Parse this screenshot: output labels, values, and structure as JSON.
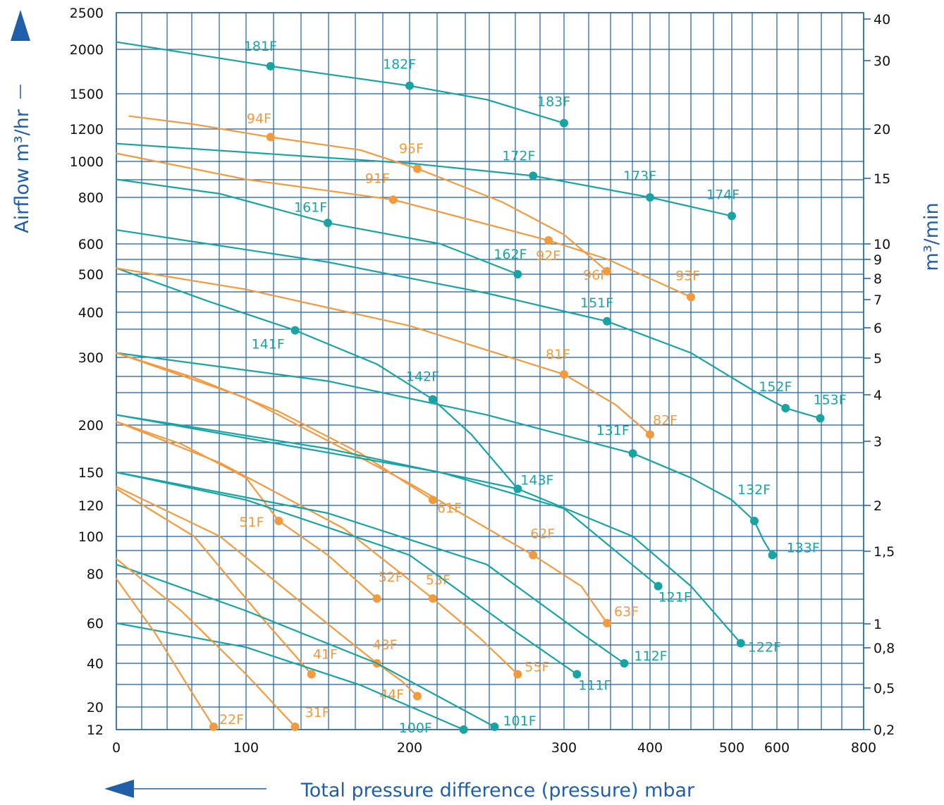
{
  "chart_data": {
    "type": "line",
    "title": "",
    "xlabel": "Total pressure difference (pressure) mbar",
    "ylabel_left": "Airflow m³/hr",
    "ylabel_right": "m³/min",
    "grid": true,
    "colors": {
      "teal": "#1aa3a3",
      "orange": "#f39a3c",
      "grid": "#1f5ea8"
    },
    "x_ticks": [
      "0",
      "100",
      "200",
      "300",
      "400",
      "500",
      "600",
      "800"
    ],
    "y_left_ticks": [
      "2500",
      "2000",
      "1500",
      "1200",
      "1000",
      "800",
      "600",
      "500",
      "400",
      "300",
      "200",
      "150",
      "120",
      "100",
      "80",
      "60",
      "40",
      "20",
      "12"
    ],
    "y_right_ticks": [
      "40",
      "30",
      "20",
      "15",
      "10",
      "9",
      "8",
      "7",
      "6",
      "5",
      "4",
      "3",
      "2",
      "1,5",
      "1",
      "0,8",
      "0,5",
      "0,2"
    ],
    "series": [
      {
        "name": "181F",
        "color": "teal",
        "curve": [
          [
            0,
            2100
          ],
          [
            115,
            1810
          ]
        ],
        "points": [
          {
            "label": "181F",
            "x": 115,
            "y": 1810
          }
        ]
      },
      {
        "name": "182F",
        "color": "teal",
        "curve": [
          [
            115,
            1810
          ],
          [
            200,
            1590
          ]
        ],
        "points": [
          {
            "label": "182F",
            "x": 200,
            "y": 1590
          }
        ]
      },
      {
        "name": "183F",
        "color": "teal",
        "curve": [
          [
            200,
            1590
          ],
          [
            250,
            1450
          ],
          [
            300,
            1250
          ]
        ],
        "points": [
          {
            "label": "183F",
            "x": 300,
            "y": 1250
          }
        ]
      },
      {
        "name": "172F",
        "color": "teal",
        "curve": [
          [
            0,
            1110
          ],
          [
            200,
            990
          ],
          [
            280,
            920
          ]
        ],
        "points": [
          {
            "label": "172F",
            "x": 280,
            "y": 920
          }
        ]
      },
      {
        "name": "173F",
        "color": "teal",
        "curve": [
          [
            280,
            920
          ],
          [
            400,
            800
          ]
        ],
        "points": [
          {
            "label": "173F",
            "x": 400,
            "y": 800
          }
        ]
      },
      {
        "name": "174F",
        "color": "teal",
        "curve": [
          [
            400,
            800
          ],
          [
            500,
            720
          ]
        ],
        "points": [
          {
            "label": "174F",
            "x": 500,
            "y": 720
          }
        ]
      },
      {
        "name": "94F",
        "color": "orange",
        "curve": [
          [
            10,
            1310
          ],
          [
            60,
            1240
          ],
          [
            115,
            1150
          ]
        ],
        "points": [
          {
            "label": "94F",
            "x": 115,
            "y": 1150
          }
        ]
      },
      {
        "name": "95F",
        "color": "orange",
        "curve": [
          [
            115,
            1150
          ],
          [
            170,
            1070
          ],
          [
            205,
            960
          ]
        ],
        "points": [
          {
            "label": "95F",
            "x": 205,
            "y": 960
          }
        ]
      },
      {
        "name": "96F",
        "color": "orange",
        "curve": [
          [
            205,
            960
          ],
          [
            260,
            780
          ],
          [
            300,
            640
          ],
          [
            350,
            510
          ]
        ],
        "points": [
          {
            "label": "96F",
            "x": 350,
            "y": 510
          }
        ]
      },
      {
        "name": "91F",
        "color": "orange",
        "curve": [
          [
            0,
            1050
          ],
          [
            100,
            900
          ],
          [
            190,
            790
          ]
        ],
        "points": [
          {
            "label": "91F",
            "x": 190,
            "y": 790
          }
        ]
      },
      {
        "name": "92F",
        "color": "orange",
        "curve": [
          [
            190,
            790
          ],
          [
            290,
            615
          ]
        ],
        "points": [
          {
            "label": "92F",
            "x": 290,
            "y": 615
          }
        ]
      },
      {
        "name": "93F",
        "color": "orange",
        "curve": [
          [
            290,
            615
          ],
          [
            350,
            550
          ],
          [
            450,
            440
          ]
        ],
        "points": [
          {
            "label": "93F",
            "x": 450,
            "y": 440
          }
        ]
      },
      {
        "name": "161F",
        "color": "teal",
        "curve": [
          [
            0,
            900
          ],
          [
            80,
            820
          ],
          [
            150,
            690
          ]
        ],
        "points": [
          {
            "label": "161F",
            "x": 150,
            "y": 690
          }
        ]
      },
      {
        "name": "162F",
        "color": "teal",
        "curve": [
          [
            150,
            690
          ],
          [
            220,
            600
          ],
          [
            270,
            500
          ]
        ],
        "points": [
          {
            "label": "162F",
            "x": 270,
            "y": 500
          }
        ]
      },
      {
        "name": "151F",
        "color": "teal",
        "curve": [
          [
            0,
            660
          ],
          [
            150,
            540
          ],
          [
            250,
            450
          ],
          [
            350,
            380
          ]
        ],
        "points": [
          {
            "label": "151F",
            "x": 350,
            "y": 380
          }
        ]
      },
      {
        "name": "152F",
        "color": "teal",
        "curve": [
          [
            350,
            380
          ],
          [
            450,
            310
          ],
          [
            550,
            250
          ],
          [
            620,
            225
          ]
        ],
        "points": [
          {
            "label": "152F",
            "x": 620,
            "y": 225
          }
        ]
      },
      {
        "name": "153F",
        "color": "teal",
        "curve": [
          [
            620,
            225
          ],
          [
            700,
            210
          ]
        ],
        "points": [
          {
            "label": "153F",
            "x": 700,
            "y": 210
          }
        ]
      },
      {
        "name": "141F",
        "color": "teal",
        "curve": [
          [
            0,
            520
          ],
          [
            70,
            430
          ],
          [
            130,
            360
          ]
        ],
        "points": [
          {
            "label": "141F",
            "x": 130,
            "y": 360
          }
        ]
      },
      {
        "name": "142F",
        "color": "teal",
        "curve": [
          [
            130,
            360
          ],
          [
            180,
            290
          ],
          [
            215,
            238
          ]
        ],
        "points": [
          {
            "label": "142F",
            "x": 215,
            "y": 238
          }
        ]
      },
      {
        "name": "143F",
        "color": "teal",
        "curve": [
          [
            215,
            238
          ],
          [
            240,
            190
          ],
          [
            270,
            135
          ]
        ],
        "points": [
          {
            "label": "143F",
            "x": 270,
            "y": 135
          }
        ]
      },
      {
        "name": "81F",
        "color": "orange",
        "curve": [
          [
            0,
            520
          ],
          [
            100,
            460
          ],
          [
            200,
            370
          ],
          [
            300,
            275
          ]
        ],
        "points": [
          {
            "label": "81F",
            "x": 300,
            "y": 275
          }
        ]
      },
      {
        "name": "82F",
        "color": "orange",
        "curve": [
          [
            300,
            275
          ],
          [
            360,
            230
          ],
          [
            400,
            190
          ]
        ],
        "points": [
          {
            "label": "82F",
            "x": 400,
            "y": 190
          }
        ]
      },
      {
        "name": "131F",
        "color": "teal",
        "curve": [
          [
            0,
            310
          ],
          [
            150,
            265
          ],
          [
            250,
            215
          ],
          [
            380,
            170
          ]
        ],
        "points": [
          {
            "label": "131F",
            "x": 380,
            "y": 170
          }
        ]
      },
      {
        "name": "132F",
        "color": "teal",
        "curve": [
          [
            380,
            170
          ],
          [
            450,
            145
          ],
          [
            500,
            125
          ],
          [
            550,
            110
          ]
        ],
        "points": [
          {
            "label": "132F",
            "x": 550,
            "y": 110
          }
        ]
      },
      {
        "name": "133F",
        "color": "teal",
        "curve": [
          [
            550,
            110
          ],
          [
            570,
            98
          ],
          [
            590,
            90
          ]
        ],
        "points": [
          {
            "label": "133F",
            "x": 590,
            "y": 90
          }
        ]
      },
      {
        "name": "61F",
        "color": "orange",
        "curve": [
          [
            0,
            310
          ],
          [
            60,
            270
          ],
          [
            120,
            220
          ],
          [
            170,
            170
          ],
          [
            215,
            125
          ]
        ],
        "points": [
          {
            "label": "61F",
            "x": 215,
            "y": 125
          }
        ]
      },
      {
        "name": "62F",
        "color": "orange",
        "curve": [
          [
            0,
            310
          ],
          [
            100,
            240
          ],
          [
            200,
            140
          ],
          [
            280,
            90
          ]
        ],
        "points": [
          {
            "label": "62F",
            "x": 280,
            "y": 90
          }
        ]
      },
      {
        "name": "63F",
        "color": "orange",
        "curve": [
          [
            280,
            90
          ],
          [
            320,
            75
          ],
          [
            350,
            60
          ]
        ],
        "points": [
          {
            "label": "63F",
            "x": 350,
            "y": 60
          }
        ]
      },
      {
        "name": "121F",
        "color": "teal",
        "curve": [
          [
            0,
            215
          ],
          [
            120,
            180
          ],
          [
            220,
            150
          ],
          [
            300,
            118
          ],
          [
            410,
            75
          ]
        ],
        "points": [
          {
            "label": "121F",
            "x": 410,
            "y": 75
          }
        ]
      },
      {
        "name": "122F",
        "color": "teal",
        "curve": [
          [
            0,
            215
          ],
          [
            150,
            175
          ],
          [
            270,
            135
          ],
          [
            380,
            100
          ],
          [
            450,
            75
          ],
          [
            520,
            50
          ]
        ],
        "points": [
          {
            "label": "122F",
            "x": 520,
            "y": 50
          }
        ]
      },
      {
        "name": "51F",
        "color": "orange",
        "curve": [
          [
            0,
            205
          ],
          [
            50,
            180
          ],
          [
            100,
            145
          ],
          [
            120,
            110
          ]
        ],
        "points": [
          {
            "label": "51F",
            "x": 120,
            "y": 110
          }
        ]
      },
      {
        "name": "52F",
        "color": "orange",
        "curve": [
          [
            120,
            110
          ],
          [
            150,
            90
          ],
          [
            180,
            70
          ]
        ],
        "points": [
          {
            "label": "52F",
            "x": 180,
            "y": 70
          }
        ]
      },
      {
        "name": "53F",
        "color": "orange",
        "curve": [
          [
            0,
            205
          ],
          [
            80,
            160
          ],
          [
            160,
            105
          ],
          [
            215,
            70
          ]
        ],
        "points": [
          {
            "label": "53F",
            "x": 215,
            "y": 70
          }
        ]
      },
      {
        "name": "55F",
        "color": "orange",
        "curve": [
          [
            215,
            70
          ],
          [
            245,
            53
          ],
          [
            270,
            35
          ]
        ],
        "points": [
          {
            "label": "55F",
            "x": 270,
            "y": 35
          }
        ]
      },
      {
        "name": "111F",
        "color": "teal",
        "curve": [
          [
            0,
            150
          ],
          [
            100,
            125
          ],
          [
            200,
            90
          ],
          [
            270,
            55
          ],
          [
            315,
            35
          ]
        ],
        "points": [
          {
            "label": "111F",
            "x": 315,
            "y": 35
          }
        ]
      },
      {
        "name": "112F",
        "color": "teal",
        "curve": [
          [
            0,
            150
          ],
          [
            150,
            115
          ],
          [
            250,
            85
          ],
          [
            320,
            55
          ],
          [
            370,
            40
          ]
        ],
        "points": [
          {
            "label": "112F",
            "x": 370,
            "y": 40
          }
        ]
      },
      {
        "name": "41F",
        "color": "orange",
        "curve": [
          [
            0,
            135
          ],
          [
            60,
            100
          ],
          [
            110,
            62
          ],
          [
            140,
            35
          ]
        ],
        "points": [
          {
            "label": "41F",
            "x": 140,
            "y": 35
          }
        ]
      },
      {
        "name": "43F",
        "color": "orange",
        "curve": [
          [
            0,
            137
          ],
          [
            80,
            100
          ],
          [
            140,
            65
          ],
          [
            180,
            40
          ]
        ],
        "points": [
          {
            "label": "43F",
            "x": 180,
            "y": 40
          }
        ]
      },
      {
        "name": "44F",
        "color": "orange",
        "curve": [
          [
            180,
            40
          ],
          [
            195,
            32
          ],
          [
            205,
            25
          ]
        ],
        "points": [
          {
            "label": "44F",
            "x": 205,
            "y": 25
          }
        ]
      },
      {
        "name": "101F",
        "color": "teal",
        "curve": [
          [
            0,
            85
          ],
          [
            100,
            65
          ],
          [
            180,
            40
          ],
          [
            255,
            13
          ]
        ],
        "points": [
          {
            "label": "101F",
            "x": 255,
            "y": 13
          }
        ]
      },
      {
        "name": "100F",
        "color": "teal",
        "curve": [
          [
            0,
            60
          ],
          [
            100,
            48
          ],
          [
            170,
            30
          ],
          [
            235,
            12
          ]
        ],
        "points": [
          {
            "label": "100F",
            "x": 235,
            "y": 12
          }
        ]
      },
      {
        "name": "31F",
        "color": "orange",
        "curve": [
          [
            0,
            88
          ],
          [
            50,
            65
          ],
          [
            100,
            35
          ],
          [
            130,
            13
          ]
        ],
        "points": [
          {
            "label": "31F",
            "x": 130,
            "y": 13
          }
        ]
      },
      {
        "name": "22F",
        "color": "orange",
        "curve": [
          [
            0,
            78
          ],
          [
            30,
            55
          ],
          [
            60,
            25
          ],
          [
            75,
            13
          ]
        ],
        "points": [
          {
            "label": "22F",
            "x": 75,
            "y": 13
          }
        ]
      }
    ]
  }
}
